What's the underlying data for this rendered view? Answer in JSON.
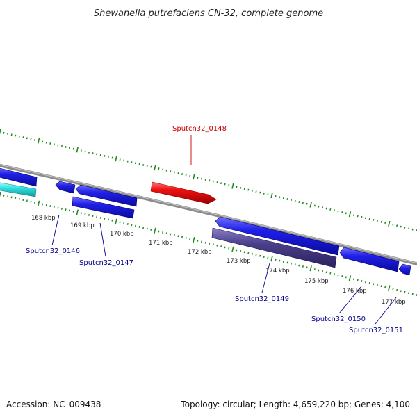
{
  "title": "Shewanella putrefaciens CN-32, complete genome",
  "footer": {
    "accession": "Accession: NC_009438",
    "summary": "Topology: circular; Length: 4,659,220 bp; Genes: 4,100"
  },
  "colors": {
    "forward_gene": "#1a1adf",
    "reverse_gene": "#1a1adf",
    "highlight_gene": "#ee1111",
    "rna_gene": "#33dddd",
    "dark_gene": "#4a3f8a",
    "backbone": "#8c8c8c",
    "tick": "#1f8a1f",
    "label_blue": "#00008b",
    "label_red": "#cc0000"
  },
  "scale_labels": [
    "168 kbp",
    "169 kbp",
    "170 kbp",
    "171 kbp",
    "172 kbp",
    "173 kbp",
    "174 kbp",
    "175 kbp",
    "176 kbp",
    "177 kbp"
  ],
  "gene_labels": [
    {
      "id": "g0146",
      "text": "Sputcn32_0146",
      "color": "#00008b"
    },
    {
      "id": "g0147",
      "text": "Sputcn32_0147",
      "color": "#00008b"
    },
    {
      "id": "g0148",
      "text": "Sputcn32_0148",
      "color": "#cc0000"
    },
    {
      "id": "g0149",
      "text": "Sputcn32_0149",
      "color": "#00008b"
    },
    {
      "id": "g0150",
      "text": "Sputcn32_0150",
      "color": "#00008b"
    },
    {
      "id": "g0151",
      "text": "Sputcn32_0151",
      "color": "#00008b"
    }
  ]
}
